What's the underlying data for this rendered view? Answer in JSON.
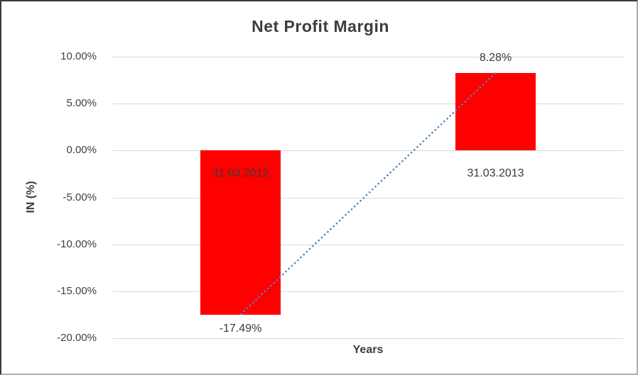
{
  "chart_data": {
    "type": "bar",
    "title": "Net Profit Margin",
    "xlabel": "Years",
    "ylabel": "IN (%)",
    "categories": [
      "31.03.2012",
      "31.03.2013"
    ],
    "series": [
      {
        "name": "Net Profit Margin",
        "values": [
          -17.49,
          8.28
        ]
      }
    ],
    "data_labels": [
      "-17.49%",
      "8.28%"
    ],
    "yticks": [
      "10.00%",
      "5.00%",
      "0.00%",
      "-5.00%",
      "-10.00%",
      "-15.00%",
      "-20.00%"
    ],
    "ytick_values": [
      10,
      5,
      0,
      -5,
      -10,
      -15,
      -20
    ],
    "ylim": [
      -20,
      10
    ],
    "grid": true,
    "legend": "none",
    "trendline": {
      "type": "linear",
      "style": "dotted",
      "color": "#4a87c8"
    }
  },
  "colors": {
    "bar": "#ff0000",
    "gridline": "#d9d9d9",
    "text": "#3f3f3f",
    "background": "#ffffff",
    "frame_dark": "#3a3a3a",
    "frame_light": "#aeaeae"
  }
}
